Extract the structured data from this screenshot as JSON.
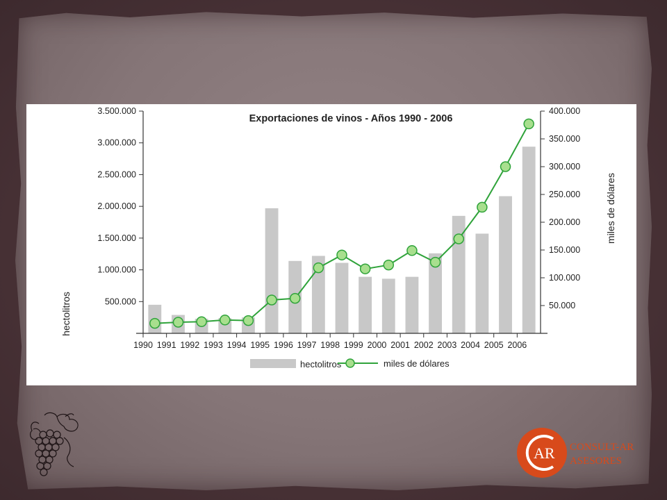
{
  "chart_data": {
    "type": "bar",
    "title": "Exportaciones de vinos - Años 1990 - 2006",
    "categories": [
      "1990",
      "1991",
      "1992",
      "1993",
      "1994",
      "1995",
      "1996",
      "1997",
      "1998",
      "1999",
      "2000",
      "2001",
      "2002",
      "2003",
      "2004",
      "2005",
      "2006"
    ],
    "x_tick_labels": [
      "1990",
      "1991",
      "1992",
      "1993",
      "1994",
      "1995",
      "1996",
      "1997",
      "1998",
      "1999",
      "2000",
      "2001",
      "2002",
      "2003",
      "2004",
      "2005",
      "2006"
    ],
    "ylabel_left": "hectolitros",
    "ylabel_right": "miles de dólares",
    "ylim_left": [
      0,
      3500000
    ],
    "ylim_right": [
      0,
      400000
    ],
    "yticks_left": [
      500000,
      1000000,
      1500000,
      2000000,
      2500000,
      3000000,
      3500000
    ],
    "ytick_labels_left": [
      "500.000",
      "1.000.000",
      "1.500.000",
      "2.000.000",
      "2.500.000",
      "3.000.000",
      "3.500.000"
    ],
    "yticks_right": [
      50000,
      100000,
      150000,
      200000,
      250000,
      300000,
      350000,
      400000
    ],
    "ytick_labels_right": [
      "50.000",
      "100.000",
      "150.000",
      "200.000",
      "250.000",
      "300.000",
      "350.000",
      "400.000"
    ],
    "grid": false,
    "legend_position": "bottom",
    "series": [
      {
        "name": "hectolitros",
        "type": "bar",
        "axis": "left",
        "color": "#c8c8c8",
        "values": [
          450000,
          290000,
          230000,
          240000,
          250000,
          1970000,
          1140000,
          1220000,
          1110000,
          890000,
          860000,
          890000,
          1260000,
          1850000,
          1570000,
          2160000,
          2940000
        ]
      },
      {
        "name": "miles de dólares",
        "type": "line",
        "axis": "right",
        "color": "#2fa33a",
        "marker_fill": "#a8df8e",
        "values": [
          18000,
          20000,
          21000,
          24000,
          23000,
          60000,
          63000,
          118000,
          141000,
          116000,
          123000,
          149000,
          128000,
          170000,
          227000,
          300000,
          377000
        ]
      }
    ]
  },
  "logo": {
    "monogram": "AR",
    "line1": "CONSULT-AR",
    "line2": "ASESORES",
    "color": "#d84a1b"
  },
  "decor": {
    "grape_icon": "grape-cluster-icon"
  }
}
